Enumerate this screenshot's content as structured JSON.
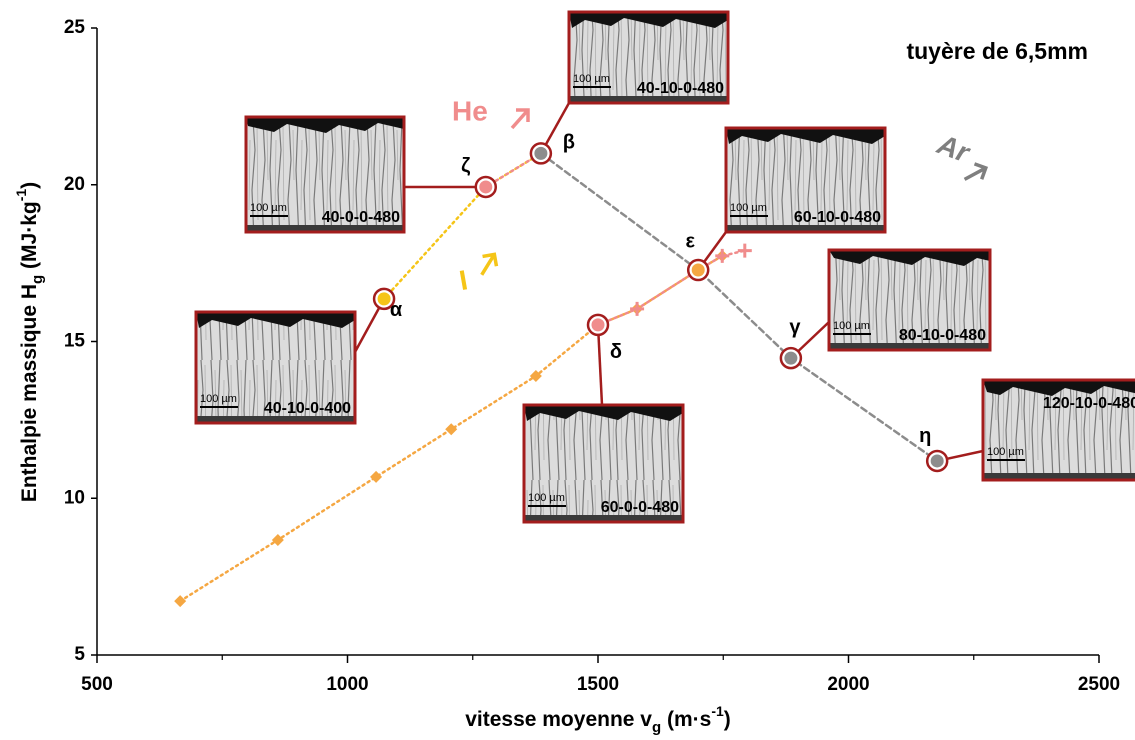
{
  "chart_data": {
    "type": "line",
    "annotation": "tuyère de 6,5mm",
    "x_label": [
      {
        "text": "vitesse moyenne v"
      },
      {
        "text": "g",
        "shift": "sub"
      },
      {
        "text": " (m·s"
      },
      {
        "text": "-1",
        "shift": "super"
      },
      {
        "text": ")"
      }
    ],
    "y_label": [
      {
        "text": "Enthalpie massique H"
      },
      {
        "text": "g",
        "shift": "sub"
      },
      {
        "text": " (MJ·kg"
      },
      {
        "text": "-1",
        "shift": "super"
      },
      {
        "text": ")"
      }
    ],
    "xlim": [
      500,
      2500
    ],
    "xticks": [
      500,
      1000,
      1500,
      2000,
      2500
    ],
    "x_minor_step": 250,
    "ylim": [
      5,
      25
    ],
    "yticks": [
      5,
      10,
      15,
      20,
      25
    ],
    "series": [
      {
        "color": "#f5a742",
        "line_style": "dotted",
        "marker": "diamond",
        "x": [
          666,
          861,
          1057,
          1207,
          1376,
          1500,
          1578,
          1700,
          1748
        ],
        "values": [
          6.72,
          8.67,
          10.68,
          12.2,
          13.9,
          15.53,
          16.04,
          17.28,
          17.73
        ]
      },
      {
        "color": "#f5c518",
        "line_style": "dotted",
        "marker": "none",
        "x": [
          1073,
          1276,
          1386
        ],
        "values": [
          16.36,
          19.93,
          21.0
        ]
      },
      {
        "color": "#f08c8c",
        "line_style": "dotted",
        "marker": "plus",
        "x": [
          1276,
          1386,
          null,
          1500,
          1578,
          1700,
          1748,
          1793
        ],
        "values": [
          19.93,
          21.0,
          null,
          15.53,
          16.04,
          17.28,
          17.73,
          17.9
        ]
      },
      {
        "color": "#8c8c8c",
        "line_style": "dashed",
        "marker": "none",
        "x": [
          1386,
          1700,
          1885,
          2177
        ],
        "values": [
          21.0,
          17.28,
          14.47,
          11.19
        ]
      }
    ],
    "highlights": [
      {
        "label": "α",
        "x": 1073,
        "y": 16.36,
        "color": "#f5c518"
      },
      {
        "label": "β",
        "x": 1386,
        "y": 21.0,
        "color": "#8c8c8c"
      },
      {
        "label": "γ",
        "x": 1885,
        "y": 14.47,
        "color": "#8c8c8c"
      },
      {
        "label": "δ",
        "x": 1500,
        "y": 15.53,
        "color": "#f08c8c"
      },
      {
        "label": "ε",
        "x": 1700,
        "y": 17.28,
        "color": "#f5a742"
      },
      {
        "label": "ζ",
        "x": 1276,
        "y": 19.93,
        "color": "#f08c8c"
      },
      {
        "label": "η",
        "x": 2177,
        "y": 11.19,
        "color": "#8c8c8c"
      }
    ],
    "insets": [
      {
        "label": "40-10-0-400",
        "scale": "100 µm"
      },
      {
        "label": "40-10-0-480",
        "scale": "100 µm"
      },
      {
        "label": "80-10-0-480",
        "scale": "100 µm"
      },
      {
        "label": "60-0-0-480",
        "scale": "100 µm"
      },
      {
        "label": "60-10-0-480",
        "scale": "100 µm"
      },
      {
        "label": "40-0-0-480",
        "scale": "100 µm"
      },
      {
        "label": "120-10-0-480",
        "scale": "100 µm"
      }
    ],
    "arrows": [
      {
        "label": "He",
        "color": "#f08c8c"
      },
      {
        "label": "I",
        "color": "#f5c518"
      },
      {
        "label": "Ar",
        "color": "#7f7f7f"
      }
    ]
  }
}
